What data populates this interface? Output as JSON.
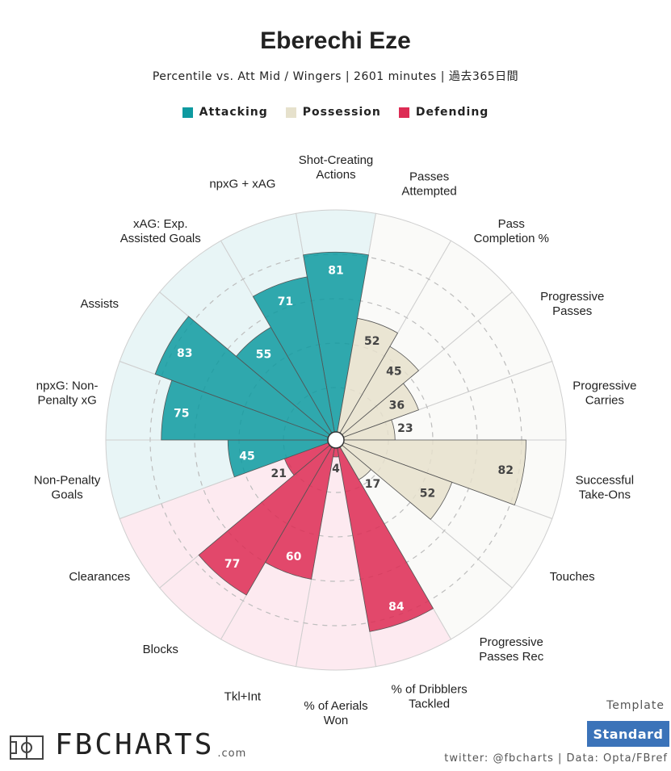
{
  "chart_data": {
    "type": "radar-bar",
    "title": "Eberechi Eze",
    "subtitle": "Percentile vs. Att Mid / Wingers | 2601 minutes | 過去365日間",
    "legend": [
      {
        "name": "Attacking",
        "color": "#0e9aa0"
      },
      {
        "name": "Possession",
        "color": "#e6e1cc"
      },
      {
        "name": "Defending",
        "color": "#dd2c54"
      }
    ],
    "range": [
      0,
      100
    ],
    "rings": [
      20,
      40,
      60,
      80
    ],
    "categories": [
      {
        "label": "Shot-Creating\nActions",
        "value": 81,
        "group": "Attacking"
      },
      {
        "label": "Passes\nAttempted",
        "value": 52,
        "group": "Possession"
      },
      {
        "label": "Pass\nCompletion %",
        "value": 45,
        "group": "Possession"
      },
      {
        "label": "Progressive\nPasses",
        "value": 36,
        "group": "Possession"
      },
      {
        "label": "Progressive\nCarries",
        "value": 23,
        "group": "Possession"
      },
      {
        "label": "Successful\nTake-Ons",
        "value": 82,
        "group": "Possession"
      },
      {
        "label": "Touches",
        "value": 52,
        "group": "Possession"
      },
      {
        "label": "Progressive\nPasses Rec",
        "value": 17,
        "group": "Possession"
      },
      {
        "label": "% of Dribblers\nTackled",
        "value": 84,
        "group": "Defending"
      },
      {
        "label": "% of Aerials\nWon",
        "value": 4,
        "group": "Defending"
      },
      {
        "label": "Tkl+Int",
        "value": 60,
        "group": "Defending"
      },
      {
        "label": "Blocks",
        "value": 77,
        "group": "Defending"
      },
      {
        "label": "Clearances",
        "value": 21,
        "group": "Defending"
      },
      {
        "label": "Non-Penalty\nGoals",
        "value": 45,
        "group": "Attacking"
      },
      {
        "label": "npxG: Non-\nPenalty xG",
        "value": 75,
        "group": "Attacking"
      },
      {
        "label": "Assists",
        "value": 83,
        "group": "Attacking"
      },
      {
        "label": "xAG: Exp.\nAssisted Goals",
        "value": 55,
        "group": "Attacking"
      },
      {
        "label": "npxG + xAG",
        "value": 71,
        "group": "Attacking"
      }
    ],
    "group_colors": {
      "Attacking": {
        "bar": "#0e9aa0",
        "bg": "#e8f5f6",
        "text": "#ffffff"
      },
      "Possession": {
        "bar": "#e6e1cc",
        "bg": "#fafaf8",
        "text": "#444444"
      },
      "Defending": {
        "bar": "#dd2c54",
        "bg": "#fdeaf0",
        "text": "#ffffff"
      }
    }
  },
  "footer": {
    "logo": "FBCHARTS",
    "logo_suffix": ".com",
    "template_label": "Template",
    "template_value": "Standard",
    "credits": "twitter: @fbcharts | Data: Opta/FBref"
  }
}
